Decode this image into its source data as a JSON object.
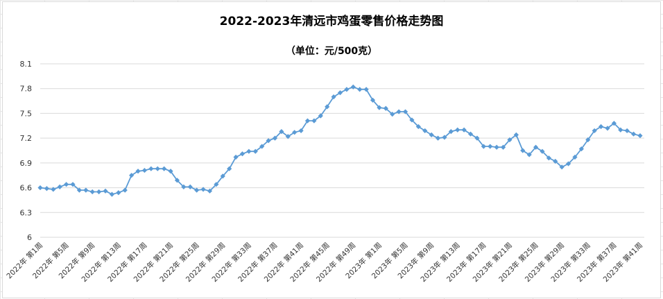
{
  "chart_data": {
    "type": "line",
    "title": "2022-2023年清远市鸡蛋零售价格走势图",
    "subtitle": "（单位：元/500克）",
    "ylim": [
      6,
      8.1
    ],
    "yticks": [
      "6",
      "6.3",
      "6.6",
      "6.9",
      "7.2",
      "7.5",
      "7.8",
      "8.1"
    ],
    "grid": true,
    "legend": "none",
    "color": "#5B9BD5",
    "x": [
      "2022年 第1周",
      "2022年 第2周",
      "2022年 第3周",
      "2022年 第4周",
      "2022年 第5周",
      "2022年 第6周",
      "2022年 第7周",
      "2022年 第8周",
      "2022年 第9周",
      "2022年 第10周",
      "2022年 第11周",
      "2022年 第12周",
      "2022年 第13周",
      "2022年 第14周",
      "2022年 第15周",
      "2022年 第16周",
      "2022年 第17周",
      "2022年 第18周",
      "2022年 第19周",
      "2022年 第20周",
      "2022年 第21周",
      "2022年 第22周",
      "2022年 第23周",
      "2022年 第24周",
      "2022年 第25周",
      "2022年 第26周",
      "2022年 第27周",
      "2022年 第28周",
      "2022年 第29周",
      "2022年 第30周",
      "2022年 第31周",
      "2022年 第32周",
      "2022年 第33周",
      "2022年 第34周",
      "2022年 第35周",
      "2022年 第36周",
      "2022年 第37周",
      "2022年 第38周",
      "2022年 第39周",
      "2022年 第40周",
      "2022年 第41周",
      "2022年 第42周",
      "2022年 第43周",
      "2022年 第44周",
      "2022年 第45周",
      "2022年 第46周",
      "2022年 第47周",
      "2022年 第48周",
      "2022年 第49周",
      "2022年 第50周",
      "2022年 第51周",
      "2022年 第52周",
      "2023年 第1周",
      "2023年 第2周",
      "2023年 第3周",
      "2023年 第4周",
      "2023年 第5周",
      "2023年 第6周",
      "2023年 第7周",
      "2023年 第8周",
      "2023年 第9周",
      "2023年 第10周",
      "2023年 第11周",
      "2023年 第12周",
      "2023年 第13周",
      "2023年 第14周",
      "2023年 第15周",
      "2023年 第16周",
      "2023年 第17周",
      "2023年 第18周",
      "2023年 第19周",
      "2023年 第20周",
      "2023年 第21周",
      "2023年 第22周",
      "2023年 第23周",
      "2023年 第24周",
      "2023年 第25周",
      "2023年 第26周",
      "2023年 第27周",
      "2023年 第28周",
      "2023年 第29周",
      "2023年 第30周",
      "2023年 第31周",
      "2023年 第32周",
      "2023年 第33周",
      "2023年 第34周",
      "2023年 第35周",
      "2023年 第36周",
      "2023年 第37周",
      "2023年 第38周",
      "2023年 第39周",
      "2023年 第40周",
      "2023年 第41周"
    ],
    "x_tick_labels": [
      "2022年 第1周",
      "2022年 第5周",
      "2022年 第9周",
      "2022年 第13周",
      "2022年 第17周",
      "2022年 第21周",
      "2022年 第25周",
      "2022年 第29周",
      "2022年 第33周",
      "2022年 第37周",
      "2022年 第41周",
      "2022年 第45周",
      "2022年 第49周",
      "2023年 第1周",
      "2023年 第5周",
      "2023年 第9周",
      "2023年 第13周",
      "2023年 第17周",
      "2023年 第21周",
      "2023年 第25周",
      "2023年 第29周",
      "2023年 第33周",
      "2023年 第37周",
      "2023年 第41周"
    ],
    "values": [
      6.6,
      6.59,
      6.58,
      6.61,
      6.64,
      6.64,
      6.57,
      6.57,
      6.55,
      6.55,
      6.56,
      6.52,
      6.54,
      6.57,
      6.75,
      6.8,
      6.81,
      6.83,
      6.83,
      6.83,
      6.8,
      6.69,
      6.61,
      6.61,
      6.57,
      6.58,
      6.56,
      6.64,
      6.74,
      6.83,
      6.97,
      7.01,
      7.04,
      7.04,
      7.1,
      7.17,
      7.2,
      7.28,
      7.22,
      7.27,
      7.29,
      7.41,
      7.41,
      7.47,
      7.58,
      7.7,
      7.75,
      7.79,
      7.82,
      7.79,
      7.79,
      7.66,
      7.57,
      7.56,
      7.49,
      7.52,
      7.52,
      7.42,
      7.34,
      7.29,
      7.24,
      7.2,
      7.21,
      7.28,
      7.3,
      7.3,
      7.25,
      7.2,
      7.1,
      7.1,
      7.09,
      7.09,
      7.18,
      7.24,
      7.05,
      7.0,
      7.09,
      7.04,
      6.96,
      6.92,
      6.85,
      6.89,
      6.97,
      7.07,
      7.18,
      7.29,
      7.34,
      7.32,
      7.38,
      7.3,
      7.29,
      7.25,
      7.23
    ]
  }
}
